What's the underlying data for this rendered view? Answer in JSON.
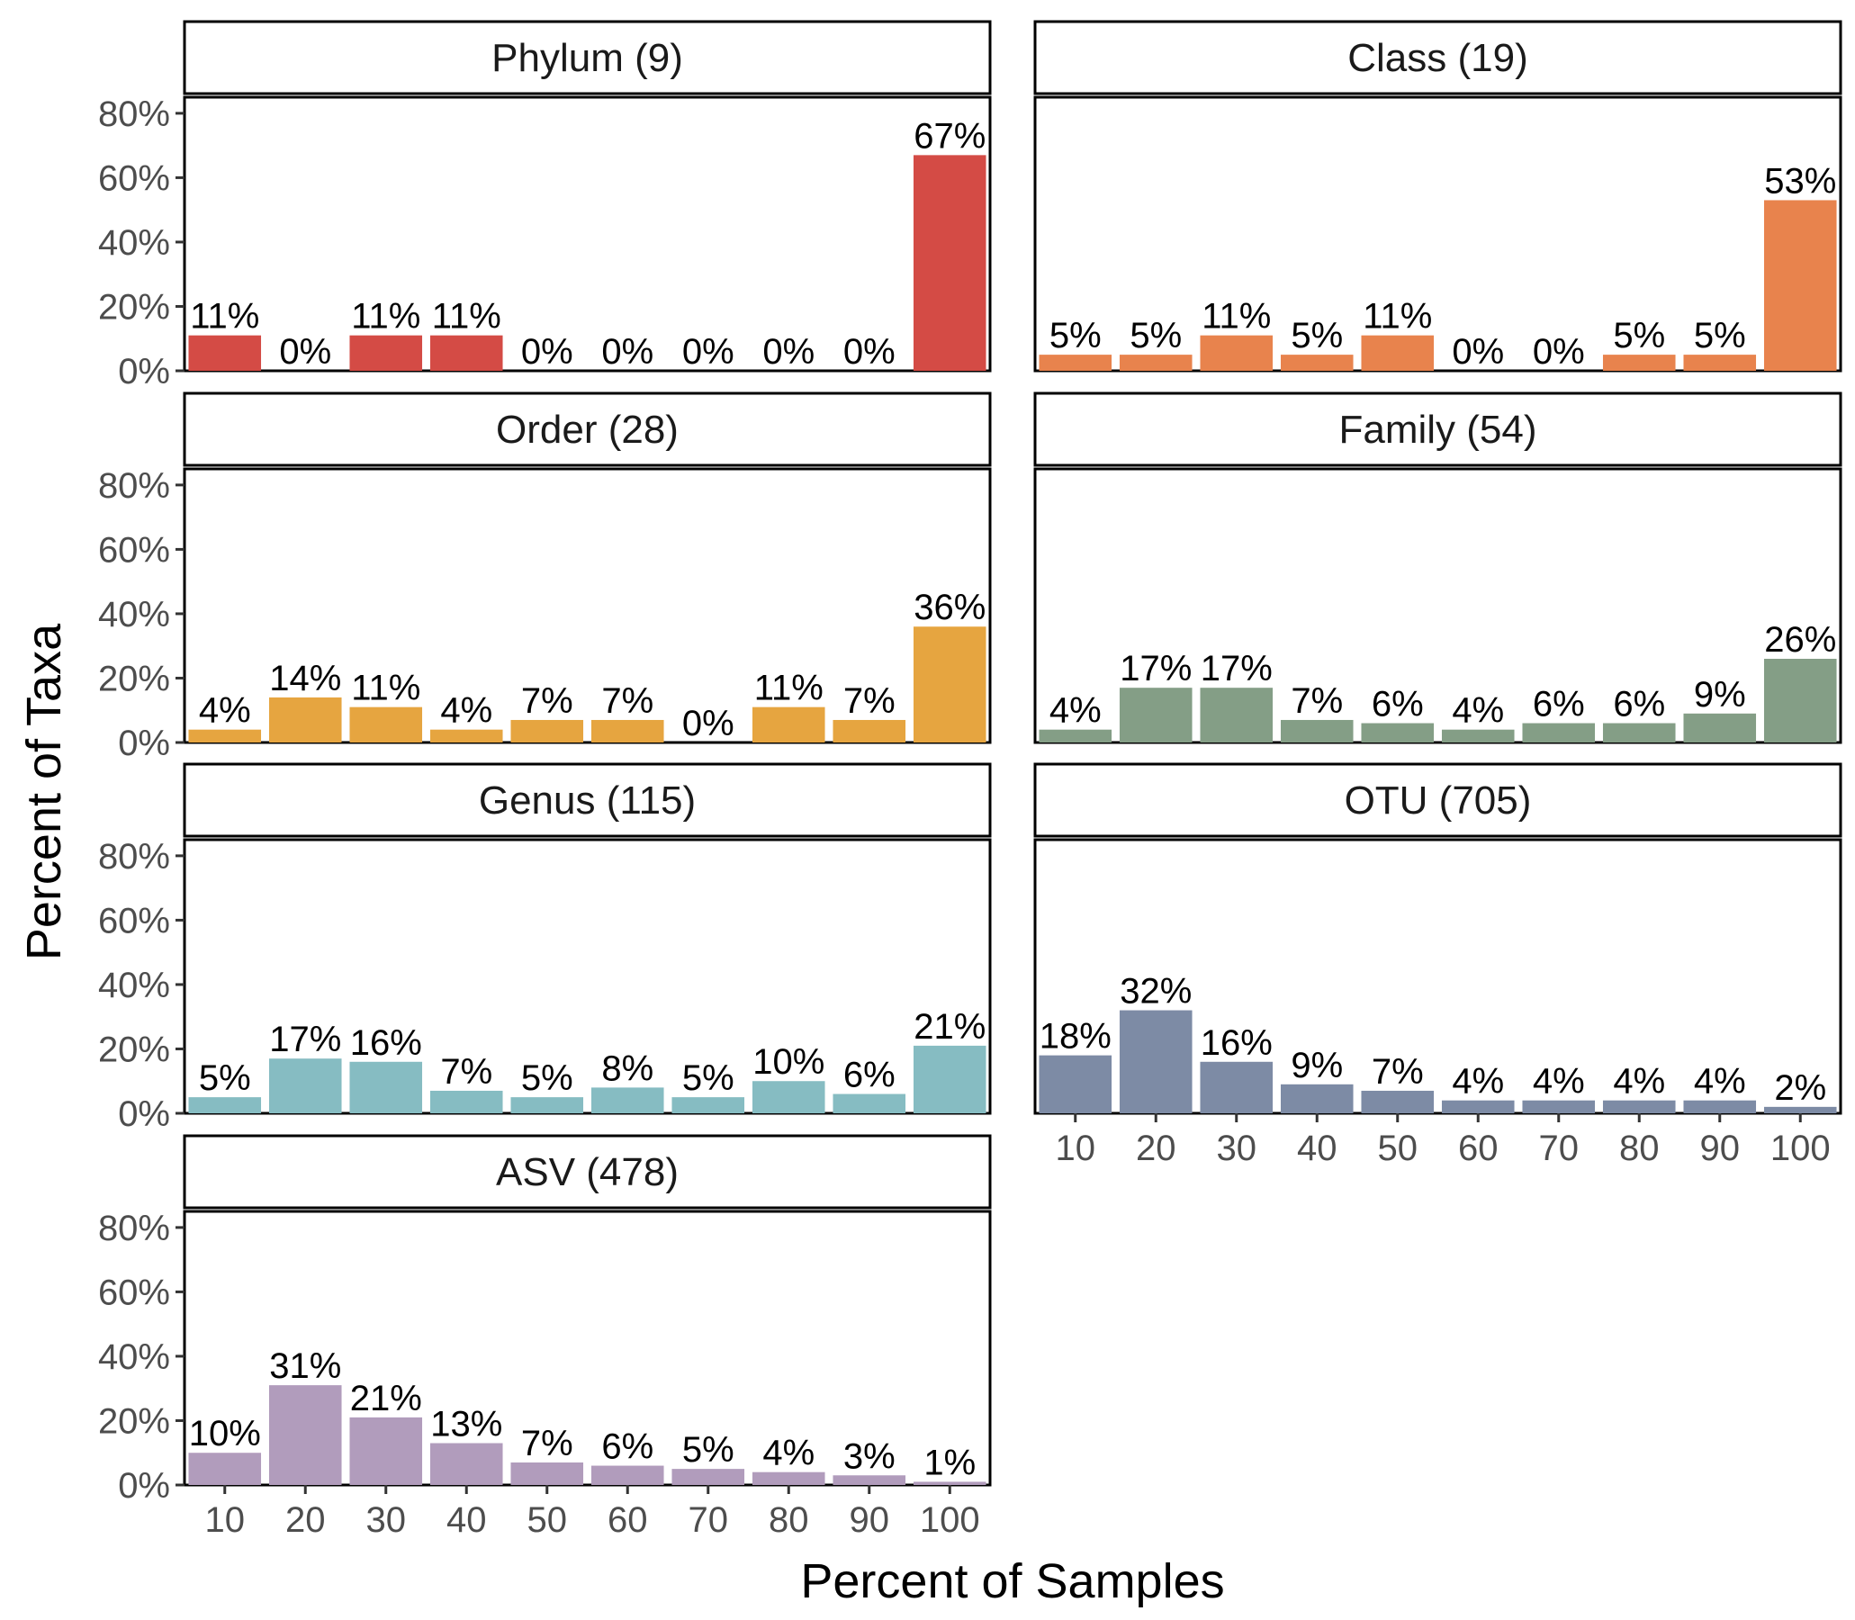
{
  "chart_data": {
    "type": "bar",
    "xlabel": "Percent of Samples",
    "ylabel": "Percent of Taxa",
    "categories": [
      "10",
      "20",
      "30",
      "40",
      "50",
      "60",
      "70",
      "80",
      "90",
      "100"
    ],
    "ylim": [
      0,
      85
    ],
    "yticks": [
      "0%",
      "20%",
      "40%",
      "60%",
      "80%"
    ],
    "grid": false,
    "panels": [
      {
        "name": "Phylum (9)",
        "color": "#d44b45",
        "values": [
          11,
          0,
          11,
          11,
          0,
          0,
          0,
          0,
          0,
          67
        ],
        "labels": [
          "11%",
          "0%",
          "11%",
          "11%",
          "0%",
          "0%",
          "0%",
          "0%",
          "0%",
          "67%"
        ]
      },
      {
        "name": "Class (19)",
        "color": "#e8834d",
        "values": [
          5,
          5,
          11,
          5,
          11,
          0,
          0,
          5,
          5,
          53
        ],
        "labels": [
          "5%",
          "5%",
          "11%",
          "5%",
          "11%",
          "0%",
          "0%",
          "5%",
          "5%",
          "53%"
        ]
      },
      {
        "name": "Order (28)",
        "color": "#e6a540",
        "values": [
          4,
          14,
          11,
          4,
          7,
          7,
          0,
          11,
          7,
          36
        ],
        "labels": [
          "4%",
          "14%",
          "11%",
          "4%",
          "7%",
          "7%",
          "0%",
          "11%",
          "7%",
          "36%"
        ]
      },
      {
        "name": "Family (54)",
        "color": "#849e86",
        "values": [
          4,
          17,
          17,
          7,
          6,
          4,
          6,
          6,
          9,
          26
        ],
        "labels": [
          "4%",
          "17%",
          "17%",
          "7%",
          "6%",
          "4%",
          "6%",
          "6%",
          "9%",
          "26%"
        ]
      },
      {
        "name": "Genus (115)",
        "color": "#86bcc2",
        "values": [
          5,
          17,
          16,
          7,
          5,
          8,
          5,
          10,
          6,
          21
        ],
        "labels": [
          "5%",
          "17%",
          "16%",
          "7%",
          "5%",
          "8%",
          "5%",
          "10%",
          "6%",
          "21%"
        ]
      },
      {
        "name": "OTU (705)",
        "color": "#7d8ba5",
        "values": [
          18,
          32,
          16,
          9,
          7,
          4,
          4,
          4,
          4,
          2
        ],
        "labels": [
          "18%",
          "32%",
          "16%",
          "9%",
          "7%",
          "4%",
          "4%",
          "4%",
          "4%",
          "2%"
        ]
      },
      {
        "name": "ASV (478)",
        "color": "#b19cbc",
        "values": [
          10,
          31,
          21,
          13,
          7,
          6,
          5,
          4,
          3,
          1
        ],
        "labels": [
          "10%",
          "31%",
          "21%",
          "13%",
          "7%",
          "6%",
          "5%",
          "4%",
          "3%",
          "1%"
        ]
      }
    ]
  }
}
